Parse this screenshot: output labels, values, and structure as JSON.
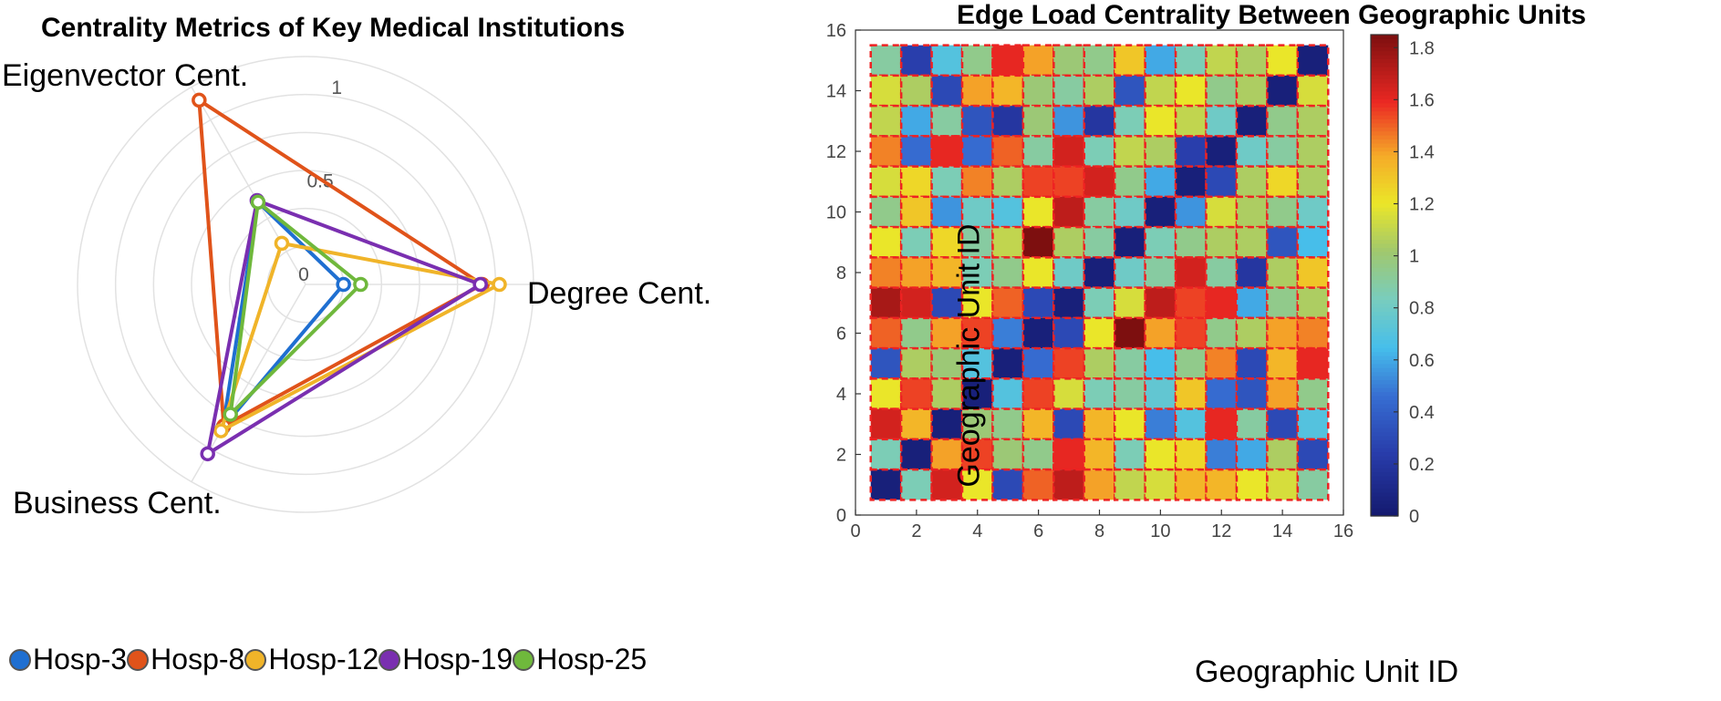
{
  "colors": {
    "Hosp-3": "#1f6fd1",
    "Hosp-8": "#e0531a",
    "Hosp-12": "#f0b429",
    "Hosp-19": "#7a2fb0",
    "Hosp-25": "#6fb83c",
    "grid": "#e2e2e2",
    "cell_border": "#ee2222"
  },
  "chart_data": [
    {
      "type": "radar",
      "title": "Centrality Metrics of Key Medical Institutions",
      "axes": [
        "Degree Cent.",
        "Eigenvector Cent.",
        "Business Cent."
      ],
      "r_ticks": [
        "0",
        "0.5",
        "1"
      ],
      "r_tick_values": [
        0,
        0.5,
        1
      ],
      "r_max": 1.2,
      "legend": [
        "Hosp-3",
        "Hosp-8",
        "Hosp-12",
        "Hosp-19",
        "Hosp-25"
      ],
      "series": [
        {
          "name": "Hosp-3",
          "values": [
            0.2,
            0.5,
            0.87
          ]
        },
        {
          "name": "Hosp-8",
          "values": [
            0.93,
            1.12,
            0.86
          ]
        },
        {
          "name": "Hosp-12",
          "values": [
            1.02,
            0.25,
            0.89
          ]
        },
        {
          "name": "Hosp-19",
          "values": [
            0.92,
            0.51,
            1.03
          ]
        },
        {
          "name": "Hosp-25",
          "values": [
            0.29,
            0.5,
            0.79
          ]
        }
      ]
    },
    {
      "type": "heatmap",
      "title": "Edge Load Centrality Between Geographic Units",
      "xlabel": "Geographic Unit ID",
      "ylabel": "Geographic Unit ID",
      "xlim": [
        0,
        16
      ],
      "ylim": [
        0,
        16
      ],
      "xticks": [
        0,
        2,
        4,
        6,
        8,
        10,
        12,
        14,
        16
      ],
      "yticks": [
        0,
        2,
        4,
        6,
        8,
        10,
        12,
        14,
        16
      ],
      "colorbar": {
        "min": 0,
        "max": 1.85,
        "ticks": [
          0,
          0.2,
          0.4,
          0.6,
          0.8,
          1,
          1.2,
          1.4,
          1.6,
          1.8
        ]
      },
      "rows_top_to_bottom": [
        [
          0.9,
          0.25,
          0.7,
          0.95,
          1.6,
          1.4,
          1.0,
          0.95,
          1.3,
          0.6,
          0.85,
          1.1,
          1.05,
          1.2,
          0.05
        ],
        [
          1.15,
          1.05,
          0.3,
          1.4,
          1.35,
          1.0,
          0.9,
          1.05,
          0.35,
          1.1,
          1.2,
          0.95,
          1.05,
          0.05,
          1.15
        ],
        [
          1.1,
          0.6,
          0.9,
          0.35,
          0.2,
          1.0,
          0.55,
          0.2,
          0.85,
          1.2,
          1.1,
          0.8,
          0.05,
          0.95,
          1.05
        ],
        [
          1.45,
          0.45,
          1.6,
          0.45,
          1.5,
          0.9,
          1.65,
          0.85,
          1.1,
          1.05,
          0.25,
          0.05,
          0.8,
          0.9,
          1.05
        ],
        [
          1.15,
          1.25,
          0.85,
          1.45,
          1.05,
          1.55,
          1.55,
          1.65,
          0.95,
          0.6,
          0.05,
          0.3,
          1.05,
          1.25,
          1.05
        ],
        [
          0.95,
          1.3,
          0.55,
          0.8,
          0.7,
          1.2,
          1.7,
          0.9,
          0.8,
          0.05,
          0.55,
          1.15,
          1.05,
          0.95,
          0.8
        ],
        [
          1.2,
          0.85,
          1.25,
          0.9,
          1.1,
          1.85,
          1.05,
          0.9,
          0.05,
          0.85,
          0.95,
          1.05,
          1.05,
          0.35,
          0.65
        ],
        [
          1.45,
          1.4,
          1.35,
          0.85,
          0.95,
          1.2,
          0.8,
          0.05,
          0.8,
          0.9,
          1.65,
          0.9,
          0.2,
          1.05,
          1.3
        ],
        [
          1.75,
          1.65,
          0.3,
          1.2,
          1.5,
          0.3,
          0.05,
          0.85,
          1.15,
          1.7,
          1.55,
          1.6,
          0.6,
          0.95,
          1.05
        ],
        [
          1.5,
          0.95,
          1.4,
          1.55,
          0.5,
          0.05,
          0.3,
          1.2,
          1.85,
          1.4,
          1.55,
          0.95,
          1.05,
          1.4,
          1.45
        ],
        [
          0.35,
          1.05,
          1.0,
          0.7,
          0.05,
          0.45,
          1.55,
          1.05,
          0.9,
          0.65,
          0.95,
          1.45,
          0.3,
          1.35,
          1.6
        ],
        [
          1.2,
          1.55,
          1.05,
          0.05,
          0.7,
          1.55,
          1.15,
          0.85,
          0.9,
          0.75,
          1.3,
          0.45,
          0.35,
          1.4,
          0.95
        ],
        [
          1.65,
          1.35,
          0.05,
          1.0,
          0.95,
          1.35,
          0.3,
          1.35,
          1.2,
          0.5,
          0.7,
          1.6,
          0.9,
          0.3,
          0.7
        ],
        [
          0.85,
          0.05,
          1.4,
          1.55,
          1.0,
          0.95,
          1.6,
          1.35,
          0.85,
          1.2,
          1.25,
          0.5,
          0.6,
          1.05,
          0.3
        ],
        [
          0.05,
          0.85,
          1.65,
          1.2,
          0.3,
          1.5,
          1.7,
          1.4,
          1.1,
          1.15,
          1.35,
          1.35,
          1.2,
          1.15,
          0.9
        ]
      ]
    }
  ]
}
